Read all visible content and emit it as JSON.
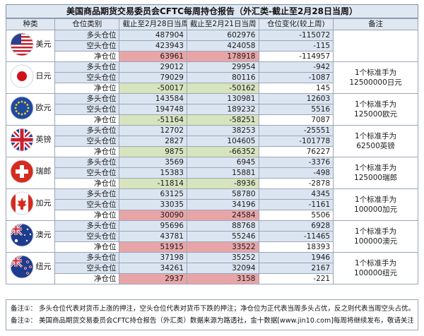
{
  "title": "美国商品期货交易委员会CFTC每周持仓报告（外汇类-截止至2月28日当周）",
  "headers": {
    "kind": "种类",
    "pos_type": "仓位类别",
    "week1": "截止至2月28日当周",
    "week2": "截止至2月21日当周",
    "change": "仓位变化(较上周)",
    "note": "备注"
  },
  "row_labels": {
    "long": "多头仓位",
    "short": "空头仓位",
    "net": "净仓位"
  },
  "currencies": [
    {
      "name": "美元",
      "flag": "us-flag-icon",
      "long": [
        "487904",
        "602976",
        "-115072"
      ],
      "short": [
        "423943",
        "424058",
        "-115"
      ],
      "net": [
        "63961",
        "178918",
        "-114957"
      ],
      "net_color": "red",
      "note": ""
    },
    {
      "name": "日元",
      "flag": "japan-flag-icon",
      "long": [
        "29012",
        "29954",
        "-942"
      ],
      "short": [
        "79029",
        "80116",
        "-1087"
      ],
      "net": [
        "-50017",
        "-50162",
        "145"
      ],
      "net_color": "green",
      "note": "1个标准手为12500000日元"
    },
    {
      "name": "欧元",
      "flag": "eu-flag-icon",
      "long": [
        "143584",
        "130981",
        "12603"
      ],
      "short": [
        "194748",
        "189232",
        "5516"
      ],
      "net": [
        "-51164",
        "-58251",
        "7087"
      ],
      "net_color": "green",
      "note": "1个标准手为125000欧元"
    },
    {
      "name": "英镑",
      "flag": "uk-flag-icon",
      "long": [
        "12702",
        "38253",
        "-25551"
      ],
      "short": [
        "2827",
        "104605",
        "-101778"
      ],
      "net": [
        "9875",
        "-66352",
        "76227"
      ],
      "net_color": "green",
      "note": "1个标准手为62500英镑"
    },
    {
      "name": "瑞郎",
      "flag": "swiss-flag-icon",
      "long": [
        "3569",
        "6945",
        "-3376"
      ],
      "short": [
        "15383",
        "15881",
        "-498"
      ],
      "net": [
        "-11814",
        "-8936",
        "-2878"
      ],
      "net_color": "green",
      "note": "1个标准手为125000瑞郎"
    },
    {
      "name": "加元",
      "flag": "canada-flag-icon",
      "long": [
        "63125",
        "58780",
        "4345"
      ],
      "short": [
        "33035",
        "34196",
        "-1161"
      ],
      "net": [
        "30090",
        "24584",
        "5506"
      ],
      "net_color": "red",
      "note": "1个标准手为100000加元"
    },
    {
      "name": "澳元",
      "flag": "australia-flag-icon",
      "long": [
        "95696",
        "88768",
        "6928"
      ],
      "short": [
        "43781",
        "55246",
        "-11465"
      ],
      "net": [
        "51915",
        "33522",
        "18393"
      ],
      "net_color": "red",
      "note": "1个标准手为100000澳元"
    },
    {
      "name": "纽元",
      "flag": "newzealand-flag-icon",
      "long": [
        "37198",
        "35252",
        "1946"
      ],
      "short": [
        "34261",
        "32094",
        "2167"
      ],
      "net": [
        "2937",
        "3158",
        "-221"
      ],
      "net_color": "red",
      "note": "1个标准手为100000纽元"
    }
  ],
  "footnotes": [
    "备注①：  多头仓位代表对货币上涨的押注，空头仓位代表对货币下跌的押注；净仓位为正代表当周多头占优，反之则代表当周空头占优。",
    "备注②：  美国商品期货交易委员会CFTC持仓报告（外汇类）数据来源为路透社，金十数据[www.jin10.com]每周将继续发布，敬请关注。"
  ]
}
